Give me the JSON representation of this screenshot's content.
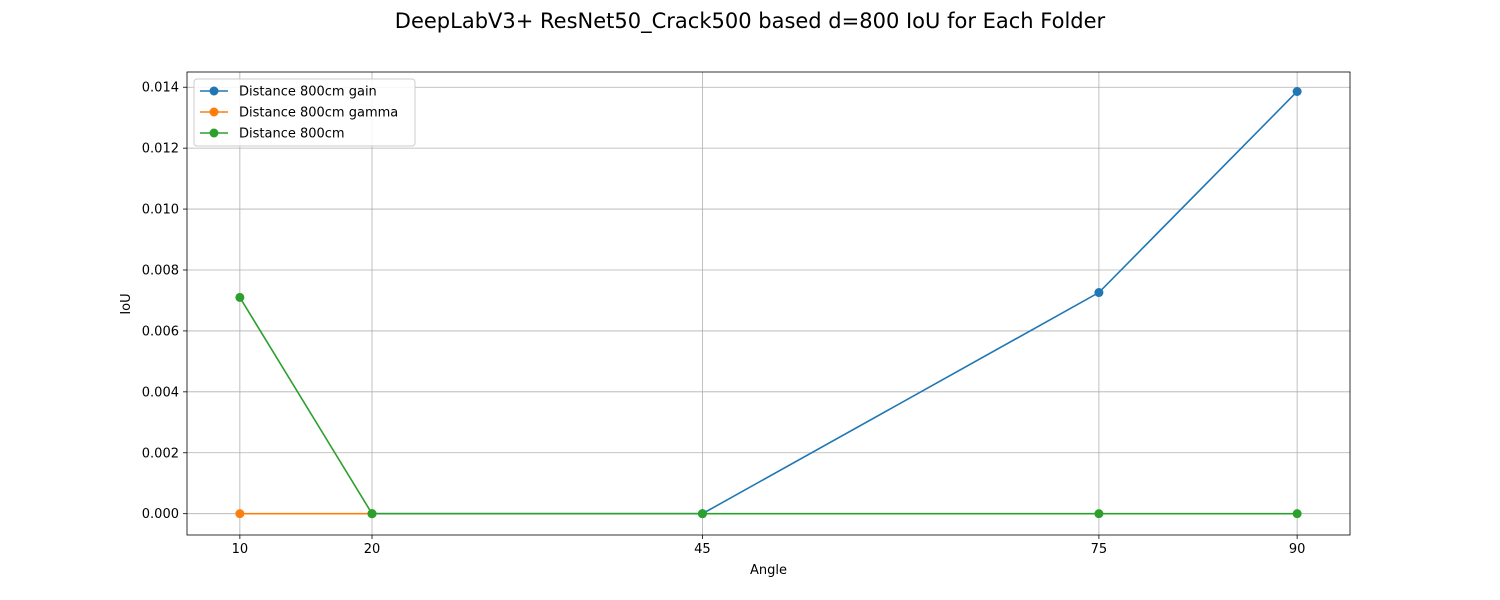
{
  "chart_data": {
    "type": "line",
    "title": "DeepLabV3+ ResNet50_Crack500 based d=800 IoU for Each Folder",
    "xlabel": "Angle",
    "ylabel": "IoU",
    "x": [
      10,
      20,
      45,
      75,
      90
    ],
    "x_tick_labels": [
      "10",
      "20",
      "45",
      "75",
      "90"
    ],
    "xlim": [
      6,
      94
    ],
    "ylim": [
      -0.0007,
      0.0145
    ],
    "y_ticks": [
      0.0,
      0.002,
      0.004,
      0.006,
      0.008,
      0.01,
      0.012,
      0.014
    ],
    "y_tick_labels": [
      "0.000",
      "0.002",
      "0.004",
      "0.006",
      "0.008",
      "0.010",
      "0.012",
      "0.014"
    ],
    "grid": true,
    "legend_position": "top-left",
    "series": [
      {
        "name": "Distance 800cm gain",
        "color": "#1f77b4",
        "x": [
          20,
          45,
          75,
          90
        ],
        "values": [
          0.0,
          0.0,
          0.00726,
          0.01386
        ]
      },
      {
        "name": "Distance 800cm gamma",
        "color": "#ff7f0e",
        "x": [
          10,
          20
        ],
        "values": [
          0.0,
          0.0
        ]
      },
      {
        "name": "Distance 800cm",
        "color": "#2ca02c",
        "x": [
          10,
          20,
          45,
          75,
          90
        ],
        "values": [
          0.0071,
          0.0,
          0.0,
          0.0,
          0.0
        ]
      }
    ]
  }
}
